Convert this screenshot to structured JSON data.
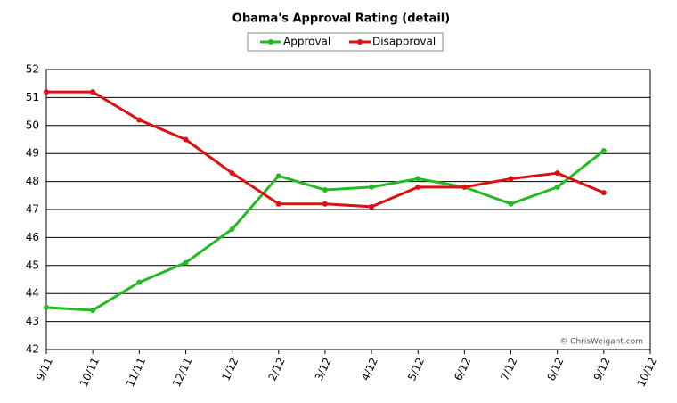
{
  "chart_data": {
    "type": "line",
    "title": "Obama's Approval Rating (detail)",
    "categories": [
      "9/11",
      "10/11",
      "11/11",
      "12/11",
      "1/12",
      "2/12",
      "3/12",
      "4/12",
      "5/12",
      "6/12",
      "7/12",
      "8/12",
      "9/12",
      "10/12"
    ],
    "series": [
      {
        "name": "Approval",
        "color": "#22bb22",
        "values": [
          43.5,
          43.4,
          44.4,
          45.1,
          46.3,
          48.2,
          47.7,
          47.8,
          48.1,
          47.8,
          47.2,
          47.8,
          49.1,
          null
        ]
      },
      {
        "name": "Disapproval",
        "color": "#dd1111",
        "values": [
          51.2,
          51.2,
          50.2,
          49.5,
          48.3,
          47.2,
          47.2,
          47.1,
          47.8,
          47.8,
          48.1,
          48.3,
          47.6,
          null
        ]
      }
    ],
    "ylim": [
      42,
      52
    ],
    "yticks": [
      42,
      43,
      44,
      45,
      46,
      47,
      48,
      49,
      50,
      51,
      52
    ],
    "grid": true,
    "legend": "top",
    "annotation": "© ChrisWeigant.com"
  }
}
